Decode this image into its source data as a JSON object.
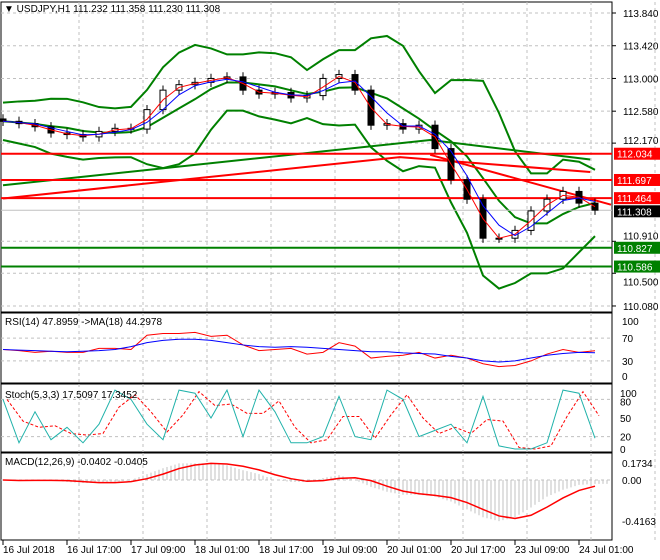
{
  "header": {
    "symbol": "USDJPY,H1",
    "open": "111.232",
    "high": "111.358",
    "low": "111.230",
    "close": "111.308"
  },
  "colors": {
    "bull": "#000000",
    "ma_fast": "#ff0000",
    "ma_mid": "#0000ff",
    "bands": "#008000",
    "resistance": "#ff0000",
    "support": "#008000",
    "rsi": "#ff0000",
    "rsi_ma": "#0000ff",
    "stoch_k": "#20b2aa",
    "stoch_d": "#ff0000",
    "macd_hist": "#c0c0c0",
    "macd_signal": "#ff0000"
  },
  "chart_data": [
    {
      "type": "candlestick",
      "title": "USDJPY,H1",
      "time_labels": [
        "16 Jul 2018",
        "16 Jul 17:00",
        "17 Jul 09:00",
        "18 Jul 01:00",
        "18 Jul 17:00",
        "19 Jul 09:00",
        "20 Jul 01:00",
        "20 Jul 17:00",
        "23 Jul 09:00",
        "24 Jul 01:00"
      ],
      "y_ticks": [
        "113.840",
        "113.420",
        "113.000",
        "112.580",
        "112.170",
        "110.910",
        "110.500",
        "110.080"
      ],
      "ylim": [
        110.08,
        113.84
      ],
      "grid": true,
      "close": [
        112.45,
        112.42,
        112.38,
        112.3,
        112.28,
        112.25,
        112.32,
        112.36,
        112.35,
        112.6,
        112.85,
        112.92,
        112.95,
        113.0,
        113.02,
        112.85,
        112.8,
        112.82,
        112.75,
        112.78,
        113.0,
        113.05,
        112.85,
        112.4,
        112.42,
        112.35,
        112.4,
        112.1,
        111.7,
        111.45,
        110.95,
        110.95,
        111.05,
        111.3,
        111.45,
        111.55,
        111.4,
        111.31
      ],
      "long_ma_green": [
        [
          0,
          111.63
        ],
        [
          26.7,
          112.21
        ],
        [
          36.7,
          111.96
        ]
      ],
      "long_ma_red": [
        [
          0,
          111.46
        ],
        [
          24.8,
          111.99
        ],
        [
          36.7,
          111.8
        ]
      ],
      "trend_red": [
        [
          26.7,
          112.02
        ],
        [
          38,
          111.38
        ]
      ],
      "levels": [
        {
          "value": "112.034",
          "kind": "resistance"
        },
        {
          "value": "111.697",
          "kind": "resistance"
        },
        {
          "value": "111.464",
          "kind": "resistance"
        },
        {
          "value": "111.308",
          "kind": "current"
        },
        {
          "value": "110.827",
          "kind": "support"
        },
        {
          "value": "110.586",
          "kind": "support"
        }
      ]
    },
    {
      "type": "line",
      "title": "RSI(14) 47.8959  ->MA(18) 44.2978",
      "y_ticks": [
        "100",
        "70",
        "30",
        "0"
      ],
      "ylim": [
        0,
        100
      ],
      "rsi": [
        50,
        48,
        45,
        47,
        45,
        45,
        52,
        52,
        50,
        75,
        78,
        78,
        80,
        73,
        75,
        58,
        48,
        50,
        52,
        42,
        45,
        62,
        56,
        35,
        38,
        40,
        45,
        35,
        40,
        35,
        25,
        20,
        22,
        30,
        42,
        50,
        45,
        47.9
      ],
      "ma": [
        50,
        49,
        48,
        47,
        46,
        47,
        48,
        50,
        55,
        62,
        66,
        68,
        68,
        66,
        62,
        58,
        55,
        54,
        55,
        54,
        52,
        50,
        48,
        46,
        46,
        44,
        43,
        42,
        38,
        35,
        30,
        28,
        30,
        35,
        40,
        43,
        45,
        44.3
      ]
    },
    {
      "type": "line",
      "title": "Stoch(5,3,3) 17.5097 17.3452",
      "y_ticks": [
        "100",
        "80",
        "50",
        "20",
        "0"
      ],
      "ylim": [
        0,
        100
      ],
      "k": [
        80,
        10,
        60,
        15,
        35,
        10,
        40,
        95,
        80,
        40,
        15,
        95,
        90,
        50,
        95,
        20,
        95,
        60,
        10,
        10,
        20,
        85,
        20,
        15,
        95,
        80,
        20,
        30,
        40,
        10,
        85,
        5,
        0,
        0,
        10,
        95,
        90,
        17.5
      ]
    },
    {
      "type": "bar",
      "title": "MACD(12,26,9) -0.0402 -0.0405",
      "y_ticks": [
        "0.1734",
        "0.00",
        "-0.4163"
      ],
      "ylim": [
        -0.4163,
        0.1734
      ],
      "macd": [
        0,
        -0.01,
        0,
        0,
        -0.02,
        -0.03,
        -0.03,
        -0.02,
        0,
        0.06,
        0.12,
        0.17,
        0.17,
        0.17,
        0.15,
        0.1,
        0.06,
        0,
        -0.02,
        -0.02,
        0.02,
        0.05,
        0,
        -0.07,
        -0.12,
        -0.15,
        -0.15,
        -0.17,
        -0.22,
        -0.3,
        -0.38,
        -0.42,
        -0.38,
        -0.28,
        -0.17,
        -0.1,
        -0.05,
        -0.04
      ]
    }
  ]
}
